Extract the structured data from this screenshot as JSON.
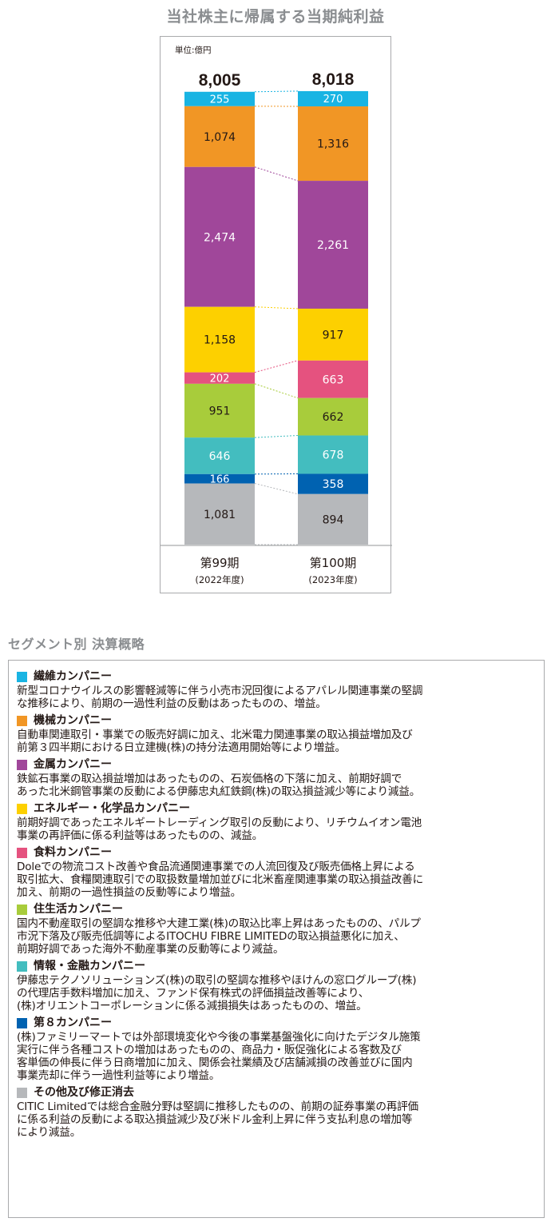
{
  "chart_data": {
    "type": "bar",
    "stacked": true,
    "title": "当社株主に帰属する当期純利益",
    "unit_label": "単位:億円",
    "categories": [
      {
        "name": "第99期",
        "sub": "(2022年度)",
        "total": "8,005"
      },
      {
        "name": "第100期",
        "sub": "(2023年度)",
        "total": "8,018"
      }
    ],
    "series": [
      {
        "name": "繊維カンパニー",
        "color": "#19b4e3",
        "values": [
          255,
          270
        ],
        "labels": [
          "255",
          "270"
        ]
      },
      {
        "name": "機械カンパニー",
        "color": "#f19625",
        "values": [
          1074,
          1316
        ],
        "labels": [
          "1,074",
          "1,316"
        ]
      },
      {
        "name": "金属カンパニー",
        "color": "#a0479a",
        "values": [
          2474,
          2261
        ],
        "labels": [
          "2,474",
          "2,261"
        ]
      },
      {
        "name": "エネルギー・化学品カンパニー",
        "color": "#fdd000",
        "values": [
          1158,
          917
        ],
        "labels": [
          "1,158",
          "917"
        ]
      },
      {
        "name": "食料カンパニー",
        "color": "#e5527f",
        "values": [
          202,
          663
        ],
        "labels": [
          "202",
          "663"
        ]
      },
      {
        "name": "住生活カンパニー",
        "color": "#a8cc3b",
        "values": [
          951,
          662
        ],
        "labels": [
          "951",
          "662"
        ]
      },
      {
        "name": "情報・金融カンパニー",
        "color": "#43bdbf",
        "values": [
          646,
          678
        ],
        "labels": [
          "646",
          "678"
        ]
      },
      {
        "name": "第8カンパニー",
        "color": "#0062b1",
        "values": [
          166,
          358
        ],
        "labels": [
          "166",
          "358"
        ]
      },
      {
        "name": "その他及び修正消去",
        "color": "#b6b8bb",
        "values": [
          1081,
          894
        ],
        "labels": [
          "1,081",
          "894"
        ]
      }
    ]
  },
  "section_title": "セグメント別 決算概略",
  "segments": [
    {
      "name": "繊維カンパニー",
      "color": "#19b4e3",
      "lines": [
        "新型コロナウイルスの影響軽減等に伴う小売市況回復によるアパレル関連事業の堅調",
        "な推移により、前期の一過性利益の反動はあったものの、増益。"
      ]
    },
    {
      "name": "機械カンパニー",
      "color": "#f19625",
      "lines": [
        "自動車関連取引・事業での販売好調に加え、北米電力関連事業の取込損益増加及び",
        "前第３四半期における日立建機(株)の持分法適用開始等により増益。"
      ]
    },
    {
      "name": "金属カンパニー",
      "color": "#a0479a",
      "lines": [
        "鉄鉱石事業の取込損益増加はあったものの、石炭価格の下落に加え、前期好調で",
        "あった北米鋼管事業の反動による伊藤忠丸紅鉄鋼(株)の取込損益減少等により減益。"
      ]
    },
    {
      "name": "エネルギー・化学品カンパニー",
      "color": "#fdd000",
      "lines": [
        "前期好調であったエネルギートレーディング取引の反動により、リチウムイオン電池",
        "事業の再評価に係る利益等はあったものの、減益。"
      ]
    },
    {
      "name": "食料カンパニー",
      "color": "#e5527f",
      "lines": [
        "Doleでの物流コスト改善や食品流通関連事業での人流回復及び販売価格上昇による",
        "取引拡大、食糧関連取引での取扱数量増加並びに北米畜産関連事業の取込損益改善に",
        "加え、前期の一過性損益の反動等により増益。"
      ]
    },
    {
      "name": "住生活カンパニー",
      "color": "#a8cc3b",
      "lines": [
        "国内不動産取引の堅調な推移や大建工業(株)の取込比率上昇はあったものの、パルプ",
        "市況下落及び販売低調等によるITOCHU FIBRE LIMITEDの取込損益悪化に加え、",
        "前期好調であった海外不動産事業の反動等により減益。"
      ]
    },
    {
      "name": "情報・金融カンパニー",
      "color": "#43bdbf",
      "lines": [
        "伊藤忠テクノソリューションズ(株)の取引の堅調な推移やほけんの窓口グループ(株)",
        "の代理店手数料増加に加え、ファンド保有株式の評価損益改善等により、",
        "(株)オリエントコーポレーションに係る減損損失はあったものの、増益。"
      ]
    },
    {
      "name": "第８カンパニー",
      "color": "#0062b1",
      "lines": [
        "(株)ファミリーマートでは外部環境変化や今後の事業基盤強化に向けたデジタル施策",
        "実行に伴う各種コストの増加はあったものの、商品力・販促強化による客数及び",
        "客単価の伸長に伴う日商増加に加え、関係会社業績及び店舗減損の改善並びに国内",
        "事業売却に伴う一過性利益等により増益。"
      ]
    },
    {
      "name": "その他及び修正消去",
      "color": "#b6b8bb",
      "lines": [
        "CITIC Limitedでは総合金融分野は堅調に推移したものの、前期の証券事業の再評価",
        "に係る利益の反動による取込損益減少及び米ドル金利上昇に伴う支払利息の増加等",
        "により減益。"
      ]
    }
  ]
}
